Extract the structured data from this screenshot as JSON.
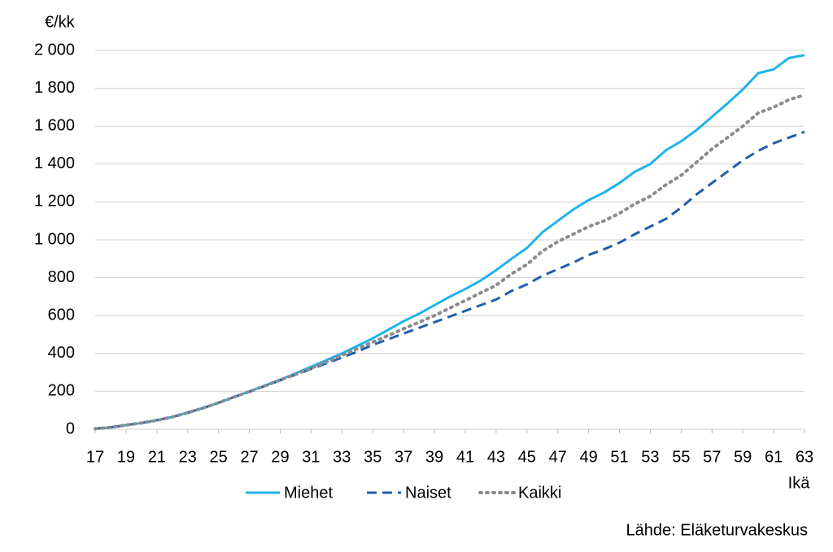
{
  "chart_data": {
    "type": "line",
    "y_label": "€/kk",
    "x_label": "Ikä",
    "source": "Lähde: Eläketurvakeskus",
    "x": [
      17,
      18,
      19,
      20,
      21,
      22,
      23,
      24,
      25,
      26,
      27,
      28,
      29,
      30,
      31,
      32,
      33,
      34,
      35,
      36,
      37,
      38,
      39,
      40,
      41,
      42,
      43,
      44,
      45,
      46,
      47,
      48,
      49,
      50,
      51,
      52,
      53,
      54,
      55,
      56,
      57,
      58,
      59,
      60,
      61,
      62,
      63
    ],
    "series": [
      {
        "name": "Miehet",
        "color": "#1fb3ea",
        "dash": "solid",
        "values": [
          3,
          10,
          22,
          33,
          48,
          65,
          88,
          112,
          140,
          170,
          200,
          230,
          262,
          295,
          330,
          365,
          400,
          440,
          480,
          525,
          570,
          610,
          655,
          700,
          740,
          785,
          840,
          900,
          957,
          1040,
          1100,
          1160,
          1210,
          1250,
          1300,
          1360,
          1400,
          1472,
          1520,
          1580,
          1650,
          1720,
          1794,
          1880,
          1900,
          1960,
          1975
        ]
      },
      {
        "name": "Naiset",
        "color": "#1f5faa",
        "dash": "dashed",
        "values": [
          3,
          10,
          22,
          33,
          47,
          65,
          87,
          112,
          140,
          170,
          198,
          228,
          258,
          288,
          318,
          348,
          378,
          410,
          445,
          475,
          505,
          535,
          565,
          595,
          625,
          655,
          685,
          730,
          765,
          810,
          845,
          880,
          920,
          950,
          985,
          1030,
          1070,
          1110,
          1170,
          1240,
          1300,
          1360,
          1420,
          1470,
          1510,
          1540,
          1570
        ]
      },
      {
        "name": "Kaikki",
        "color": "#8c8c8c",
        "dash": "dotted",
        "values": [
          3,
          10,
          22,
          33,
          47,
          65,
          87,
          112,
          140,
          170,
          199,
          229,
          260,
          290,
          322,
          355,
          390,
          425,
          460,
          495,
          530,
          565,
          600,
          640,
          680,
          720,
          760,
          820,
          870,
          940,
          990,
          1030,
          1070,
          1100,
          1140,
          1190,
          1230,
          1290,
          1340,
          1410,
          1480,
          1540,
          1600,
          1670,
          1700,
          1740,
          1765
        ]
      }
    ],
    "xlim": [
      17,
      63
    ],
    "xticks": [
      17,
      19,
      21,
      23,
      25,
      27,
      29,
      31,
      33,
      35,
      37,
      39,
      41,
      43,
      45,
      47,
      49,
      51,
      53,
      55,
      57,
      59,
      61,
      63
    ],
    "ylim": [
      0,
      2000
    ],
    "yticks": [
      0,
      200,
      400,
      600,
      800,
      {
        "value": 1000,
        "label": "1 000"
      },
      {
        "value": 1200,
        "label": "1 200"
      },
      {
        "value": 1400,
        "label": "1 400"
      },
      {
        "value": 1600,
        "label": "1 600"
      },
      {
        "value": 1800,
        "label": "1 800"
      },
      {
        "value": 2000,
        "label": "2 000"
      }
    ],
    "grid": true
  }
}
